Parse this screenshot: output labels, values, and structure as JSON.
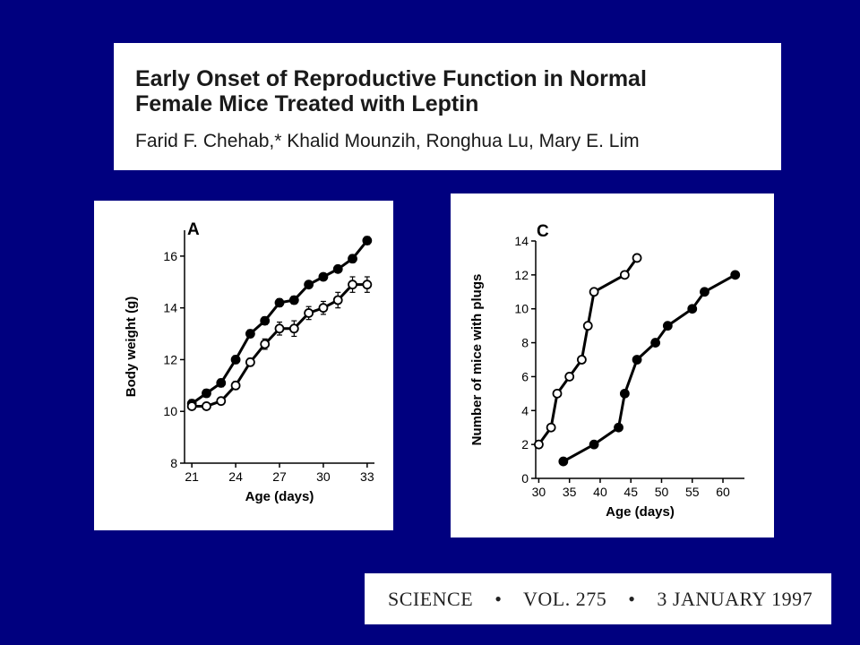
{
  "header": {
    "title_line1": "Early Onset of Reproductive Function in Normal",
    "title_line2": "Female Mice Treated with Leptin",
    "authors": "Farid F. Chehab,* Khalid Mounzih, Ronghua Lu, Mary E. Lim"
  },
  "citation": {
    "journal": "SCIENCE",
    "volume": "VOL. 275",
    "date": "3 JANUARY 1997",
    "separator": "•"
  },
  "chart_data": [
    {
      "type": "line",
      "panel_label": "A",
      "xlabel": "Age (days)",
      "ylabel": "Body weight (g)",
      "xlim": [
        20.5,
        33.5
      ],
      "ylim": [
        8,
        17
      ],
      "xticks": [
        21,
        24,
        27,
        30,
        33
      ],
      "yticks": [
        8,
        10,
        12,
        14,
        16
      ],
      "grid": false,
      "series": [
        {
          "marker": "filled-circle",
          "color": "#000000",
          "x": [
            21,
            22,
            23,
            24,
            25,
            26,
            27,
            28,
            29,
            30,
            31,
            32,
            33
          ],
          "y": [
            10.3,
            10.7,
            11.1,
            12.0,
            13.0,
            13.5,
            14.2,
            14.3,
            14.9,
            15.2,
            15.5,
            15.9,
            16.6
          ],
          "err": [
            0.15,
            0.15,
            0.15,
            0.15,
            0.15,
            0.15,
            0.15,
            0.15,
            0.1,
            0.1,
            0.1,
            0.15,
            0.15
          ]
        },
        {
          "marker": "open-circle",
          "color": "#000000",
          "x": [
            21,
            22,
            23,
            24,
            25,
            26,
            27,
            28,
            29,
            30,
            31,
            32,
            33
          ],
          "y": [
            10.2,
            10.2,
            10.4,
            11.0,
            11.9,
            12.6,
            13.2,
            13.2,
            13.8,
            14.0,
            14.3,
            14.9,
            14.9
          ],
          "err": [
            0.1,
            0.1,
            0.1,
            0.15,
            0.15,
            0.2,
            0.25,
            0.3,
            0.25,
            0.25,
            0.3,
            0.3,
            0.3
          ]
        }
      ]
    },
    {
      "type": "line",
      "panel_label": "C",
      "xlabel": "Age (days)",
      "ylabel": "Number of mice with plugs",
      "xlim": [
        29.5,
        63.5
      ],
      "ylim": [
        0,
        14
      ],
      "xticks": [
        30,
        35,
        40,
        45,
        50,
        55,
        60
      ],
      "yticks": [
        0,
        2,
        4,
        6,
        8,
        10,
        12,
        14
      ],
      "grid": false,
      "series": [
        {
          "marker": "open-circle",
          "color": "#000000",
          "x": [
            30,
            32,
            33,
            35,
            37,
            38,
            39,
            44,
            46
          ],
          "y": [
            2,
            3,
            5,
            6,
            7,
            9,
            11,
            12,
            13
          ]
        },
        {
          "marker": "filled-circle",
          "color": "#000000",
          "x": [
            34,
            39,
            43,
            44,
            46,
            49,
            51,
            55,
            57,
            62
          ],
          "y": [
            1,
            2,
            3,
            5,
            7,
            8,
            9,
            10,
            11,
            12
          ]
        }
      ]
    }
  ]
}
